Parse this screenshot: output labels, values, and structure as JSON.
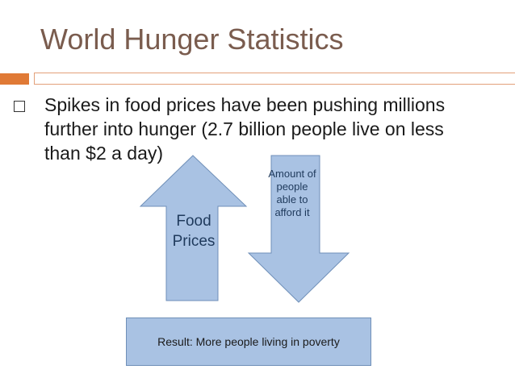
{
  "slide": {
    "title": "World Hunger Statistics",
    "bullet": "Spikes in food prices have been pushing millions further into hunger (2.7 billion people live on less than $2 a day)"
  },
  "diagram": {
    "up_arrow_label": "Food Prices",
    "down_arrow_label": "Amount of people able to afford it",
    "result": "Result: More people living in poverty",
    "colors": {
      "arrow_fill": "#a9c2e3",
      "arrow_stroke": "#6f8fb8",
      "title": "#7a5c4e",
      "accent": "#e07a36"
    }
  }
}
